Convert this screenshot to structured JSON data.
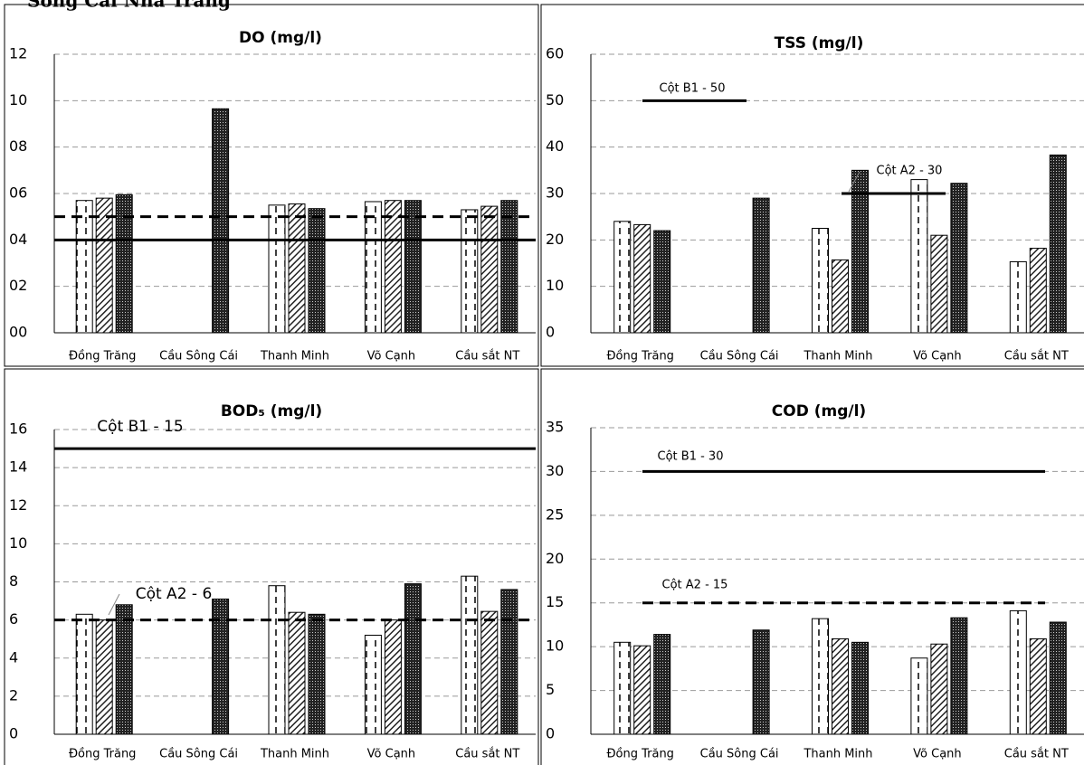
{
  "heading": "Sông Cái Nha Trang",
  "chart_data": [
    {
      "type": "bar",
      "title": "DO (mg/l)",
      "categories": [
        "Đồng Trăng",
        "Cầu Sông Cái",
        "Thanh Minh",
        "Võ Cạnh",
        "Cầu sắt NT"
      ],
      "series": [
        {
          "pattern": "dots",
          "values": [
            5.7,
            null,
            5.5,
            5.65,
            5.3
          ]
        },
        {
          "pattern": "hatch",
          "values": [
            5.8,
            null,
            5.55,
            5.7,
            5.45
          ]
        },
        {
          "pattern": "dense",
          "values": [
            5.95,
            9.65,
            5.35,
            5.7,
            5.7
          ]
        }
      ],
      "ylim": [
        0,
        12
      ],
      "yticks": [
        {
          "value": 0,
          "label": "00"
        },
        {
          "value": 2,
          "label": "02"
        },
        {
          "value": 4,
          "label": "04"
        },
        {
          "value": 6,
          "label": "06"
        },
        {
          "value": 8,
          "label": "08"
        },
        {
          "value": 10,
          "label": "10"
        },
        {
          "value": 12,
          "label": "12"
        }
      ],
      "grid": true,
      "reference_lines": [
        {
          "value": 5,
          "style": "dashed"
        },
        {
          "value": 4,
          "style": "solid"
        }
      ]
    },
    {
      "type": "bar",
      "title": "TSS  (mg/l)",
      "categories": [
        "Đồng Trăng",
        "Cầu Sông Cái",
        "Thanh Minh",
        "Võ Cạnh",
        "Cầu sắt NT"
      ],
      "series": [
        {
          "pattern": "dots",
          "values": [
            24,
            null,
            22.5,
            33,
            15.3
          ]
        },
        {
          "pattern": "hatch",
          "values": [
            23.3,
            null,
            15.7,
            21,
            18.2
          ]
        },
        {
          "pattern": "dense",
          "values": [
            22,
            29,
            35,
            32.2,
            38.3
          ]
        }
      ],
      "ylim": [
        0,
        60
      ],
      "yticks": [
        0,
        10,
        20,
        30,
        40,
        50,
        60
      ],
      "grid": true,
      "reference_lines": [
        {
          "value": 50,
          "style": "solid",
          "label": "Cột B1 - 50"
        },
        {
          "value": 30,
          "style": "solid",
          "label": "Cột A2 - 30"
        }
      ]
    },
    {
      "type": "bar",
      "title": "BOD₅ (mg/l)",
      "categories": [
        "Đồng Trăng",
        "Cầu Sông Cái",
        "Thanh Minh",
        "Võ Cạnh",
        "Cầu sắt NT"
      ],
      "series": [
        {
          "pattern": "dots",
          "values": [
            6.3,
            null,
            7.8,
            5.2,
            8.3
          ]
        },
        {
          "pattern": "hatch",
          "values": [
            6,
            null,
            6.4,
            6,
            6.45
          ]
        },
        {
          "pattern": "dense",
          "values": [
            6.8,
            7.1,
            6.3,
            7.9,
            7.6
          ]
        }
      ],
      "ylim": [
        0,
        16
      ],
      "yticks": [
        0,
        2,
        4,
        6,
        8,
        10,
        12,
        14,
        16
      ],
      "grid": true,
      "reference_lines": [
        {
          "value": 15,
          "style": "solid",
          "label": "Cột B1 - 15"
        },
        {
          "value": 6,
          "style": "dashed",
          "label": "Cột A2 - 6"
        }
      ]
    },
    {
      "type": "bar",
      "title": "COD  (mg/l)",
      "categories": [
        "Đồng Trăng",
        "Cầu Sông Cái",
        "Thanh Minh",
        "Võ Cạnh",
        "Cầu sắt NT"
      ],
      "series": [
        {
          "pattern": "dots",
          "values": [
            10.5,
            null,
            13.2,
            8.7,
            14.1
          ]
        },
        {
          "pattern": "hatch",
          "values": [
            10.1,
            null,
            10.9,
            10.3,
            10.9
          ]
        },
        {
          "pattern": "dense",
          "values": [
            11.4,
            11.9,
            10.5,
            13.3,
            12.8
          ]
        }
      ],
      "ylim": [
        0,
        35
      ],
      "yticks": [
        0,
        5,
        10,
        15,
        20,
        25,
        30,
        35
      ],
      "grid": true,
      "reference_lines": [
        {
          "value": 30,
          "style": "solid",
          "label": "Cột B1 - 30"
        },
        {
          "value": 15,
          "style": "dashed",
          "label": "Cột A2 - 15"
        }
      ]
    }
  ]
}
